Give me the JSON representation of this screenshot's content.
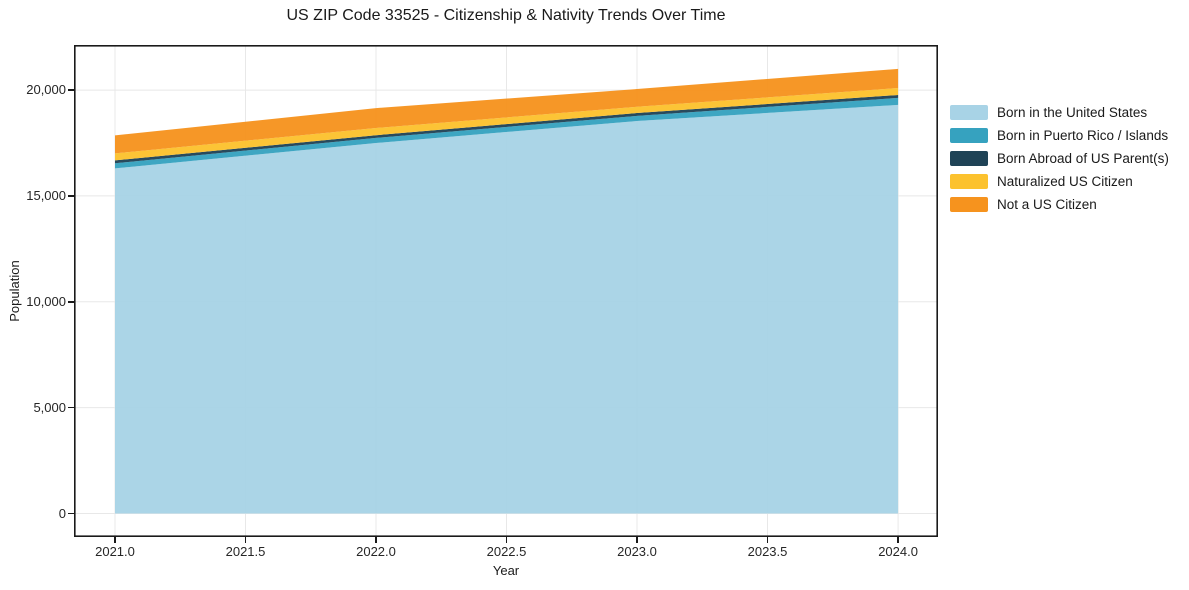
{
  "figure": {
    "background": "#ffffff"
  },
  "chart_data": {
    "type": "area",
    "stacked": true,
    "title": "US ZIP Code 33525 - Citizenship & Nativity Trends Over Time",
    "xlabel": "Year",
    "ylabel": "Population",
    "x": [
      2021,
      2022,
      2023,
      2024
    ],
    "series": [
      {
        "name": "Born in the United States",
        "color": "#a8d3e6",
        "values": [
          16300,
          17500,
          18540,
          19300
        ]
      },
      {
        "name": "Born in Puerto Rico / Islands",
        "color": "#36a2bf",
        "values": [
          240,
          240,
          240,
          330
        ]
      },
      {
        "name": "Born Abroad of US Parent(s)",
        "color": "#1f4356",
        "values": [
          140,
          130,
          140,
          140
        ]
      },
      {
        "name": "Naturalized US Citizen",
        "color": "#fcc22e",
        "values": [
          330,
          340,
          290,
          330
        ]
      },
      {
        "name": "Not a US Citizen",
        "color": "#f6931e",
        "values": [
          850,
          940,
          840,
          900
        ]
      }
    ],
    "xticks": [
      2021.0,
      2021.5,
      2022.0,
      2022.5,
      2023.0,
      2023.5,
      2024.0
    ],
    "xtick_labels": [
      "2021.0",
      "2021.5",
      "2022.0",
      "2022.5",
      "2023.0",
      "2023.5",
      "2024.0"
    ],
    "yticks": [
      0,
      5000,
      10000,
      15000,
      20000
    ],
    "ytick_labels": [
      "0",
      "5,000",
      "10,000",
      "15,000",
      "20,000"
    ],
    "xlim": [
      2020.843,
      2024.153
    ],
    "ylim": [
      -1110,
      22130
    ],
    "grid": true,
    "legend_position": "right-outside"
  },
  "colors": {
    "grid": "#e8e8e8",
    "frame": "#1a1a1a",
    "text": "#1a1a1a"
  }
}
